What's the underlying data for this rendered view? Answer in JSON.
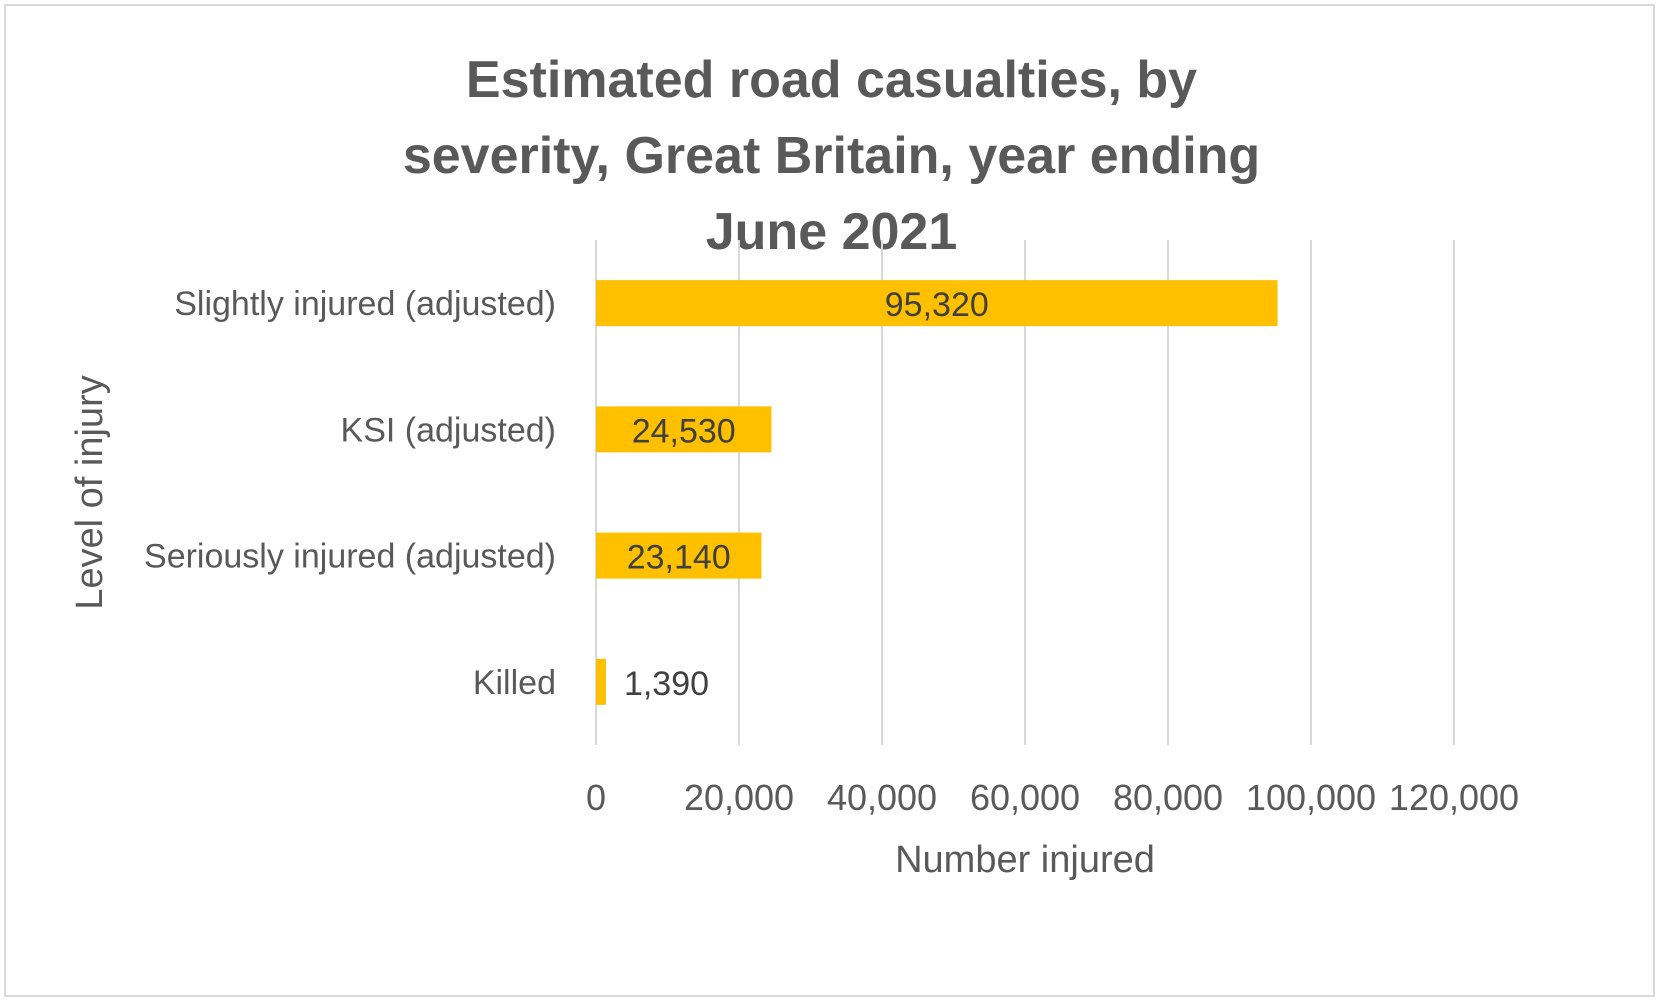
{
  "chart_data": {
    "type": "bar",
    "orientation": "horizontal",
    "title": "Estimated road casualties, by severity, Great Britain, year ending June 2021",
    "xlabel": "Number injured",
    "ylabel": "Level of injury",
    "categories": [
      "Slightly injured (adjusted)",
      "KSI (adjusted)",
      "Seriously injured (adjusted)",
      "Killed"
    ],
    "values": [
      95320,
      24530,
      23140,
      1390
    ],
    "data_labels": [
      "95,320",
      "24,530",
      "23,140",
      "1,390"
    ],
    "xlim": [
      0,
      120000
    ],
    "x_ticks": [
      0,
      20000,
      40000,
      60000,
      80000,
      100000,
      120000
    ],
    "x_tick_labels": [
      "0",
      "20,000",
      "40,000",
      "60,000",
      "80,000",
      "100,000",
      "120,000"
    ],
    "grid": true,
    "legend": "none",
    "bar_color": "#FFC000",
    "gridline_color": "#D9D9D9",
    "text_color": "#595959"
  }
}
